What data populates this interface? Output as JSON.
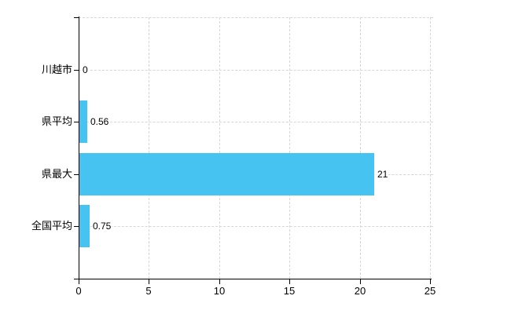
{
  "chart_data": {
    "type": "bar",
    "orientation": "horizontal",
    "title": "",
    "categories": [
      "川越市",
      "県平均",
      "県最大",
      "全国平均"
    ],
    "values": [
      0,
      0.56,
      21,
      0.75
    ],
    "value_labels": [
      "0",
      "0.56",
      "21",
      "0.75"
    ],
    "x_ticks": [
      0,
      5,
      10,
      15,
      20,
      25
    ],
    "xlim": [
      0,
      25
    ],
    "grid": true,
    "legend": false,
    "bar_color": "#47C3F1",
    "axis_color": "#000000",
    "grid_color": "#d6d6d6",
    "text_color": "#000000"
  }
}
